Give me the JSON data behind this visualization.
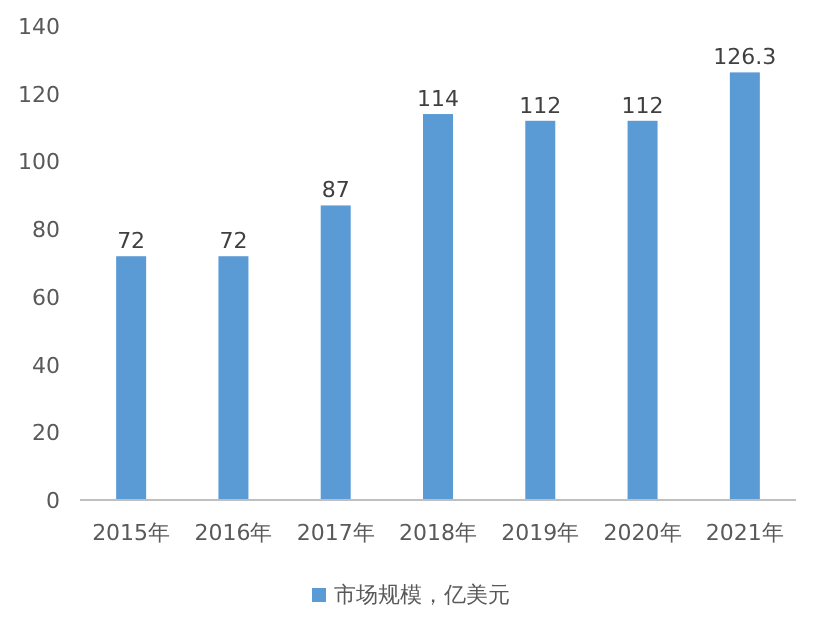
{
  "chart_data": {
    "type": "bar",
    "categories": [
      "2015年",
      "2016年",
      "2017年",
      "2018年",
      "2019年",
      "2020年",
      "2021年"
    ],
    "series": [
      {
        "name": "市场规模，亿美元",
        "color": "#5b9bd5",
        "values": [
          72,
          72,
          87,
          114,
          112,
          112,
          126.3
        ]
      }
    ],
    "ylim": [
      0,
      140
    ],
    "yticks": [
      0,
      20,
      40,
      60,
      80,
      100,
      120,
      140
    ],
    "data_labels": true,
    "legend": "bottom",
    "grid": false
  }
}
